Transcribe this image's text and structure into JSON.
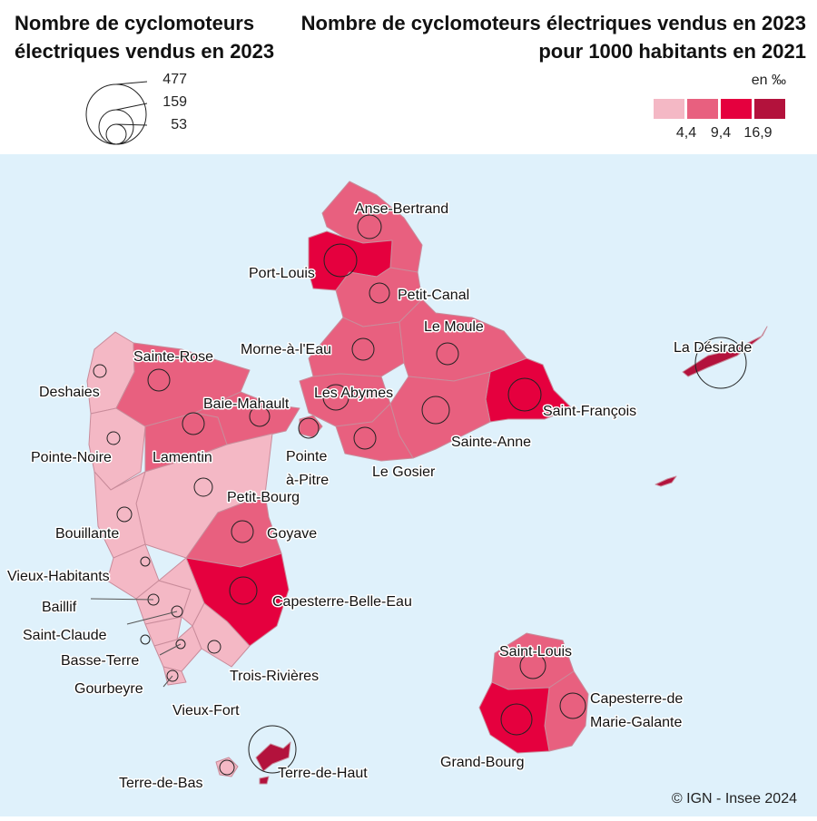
{
  "titles": {
    "left": "Nombre de cyclomoteurs électriques vendus en 2023",
    "right": "Nombre de cyclomoteurs électriques vendus en 2023 pour 1000 habitants en 2021"
  },
  "size_legend": {
    "values": [
      "477",
      "159",
      "53"
    ]
  },
  "color_legend": {
    "unit": "en ‰",
    "breaks": [
      "4,4",
      "9,4",
      "16,9"
    ],
    "colors": [
      "#f4b8c5",
      "#e8607f",
      "#e5003e",
      "#b3123c"
    ]
  },
  "copyright": "© IGN - Insee 2024",
  "communes": {
    "anse_bertrand": "Anse-Bertrand",
    "port_louis": "Port-Louis",
    "petit_canal": "Petit-Canal",
    "le_moule": "Le Moule",
    "morne_a_l_eau": "Morne-à-l'Eau",
    "sainte_rose": "Sainte-Rose",
    "deshaies": "Deshaies",
    "les_abymes": "Les Abymes",
    "baie_mahault": "Baie-Mahault",
    "saint_francois": "Saint-François",
    "la_desirade": "La Désirade",
    "pointe_noire": "Pointe-Noire",
    "lamentin": "Lamentin",
    "pointe_a_pitre_1": "Pointe",
    "pointe_a_pitre_2": "à-Pitre",
    "sainte_anne": "Sainte-Anne",
    "le_gosier": "Le Gosier",
    "petit_bourg": "Petit-Bourg",
    "bouillante": "Bouillante",
    "goyave": "Goyave",
    "vieux_habitants": "Vieux-Habitants",
    "capesterre_belle_eau": "Capesterre-Belle-Eau",
    "baillif": "Baillif",
    "saint_claude": "Saint-Claude",
    "basse_terre": "Basse-Terre",
    "trois_rivieres": "Trois-Rivières",
    "gourbeyre": "Gourbeyre",
    "vieux_fort": "Vieux-Fort",
    "saint_louis": "Saint-Louis",
    "capesterre_mg_1": "Capesterre-de",
    "capesterre_mg_2": "Marie-Galante",
    "grand_bourg": "Grand-Bourg",
    "terre_de_bas": "Terre-de-Bas",
    "terre_de_haut": "Terre-de-Haut"
  }
}
